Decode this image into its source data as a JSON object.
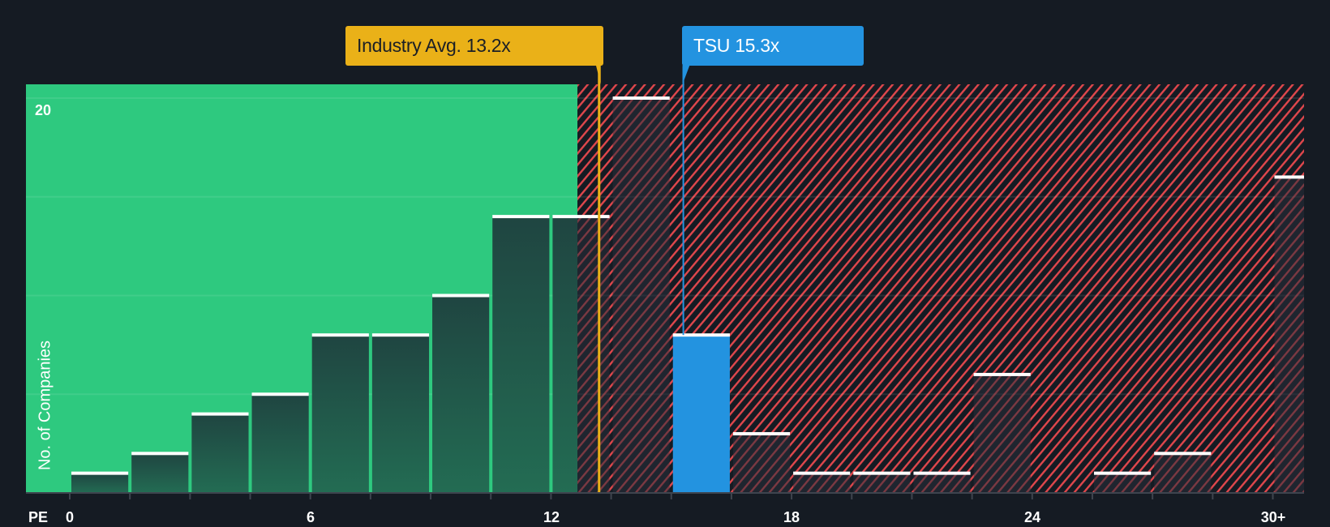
{
  "chart_data": {
    "type": "bar",
    "title": "",
    "xlabel": "PE",
    "ylabel": "No. of Companies",
    "x_tick_labels": [
      "0",
      "6",
      "12",
      "18",
      "24",
      "30+"
    ],
    "y_tick_labels": [
      "20"
    ],
    "ylim": [
      0,
      20.7
    ],
    "grid": true,
    "bin_width": 1.5,
    "categories": [
      "0-1.5",
      "1.5-3",
      "3-4.5",
      "4.5-6",
      "6-7.5",
      "7.5-9",
      "9-10.5",
      "10.5-12",
      "12-13.5",
      "13.5-15",
      "15-16.5",
      "16.5-18",
      "18-19.5",
      "19.5-21",
      "21-22.5",
      "22.5-24",
      "24-25.5",
      "25.5-27",
      "27-28.5",
      "28.5-30",
      "30+"
    ],
    "values": [
      1,
      2,
      4,
      5,
      8,
      8,
      10,
      14,
      14,
      20,
      8,
      3,
      1,
      1,
      1,
      6,
      0,
      1,
      2,
      0,
      16
    ],
    "highlight_bin_index": 10,
    "annotations": [
      {
        "label": "Industry Avg. 13.2x",
        "x": 13.2,
        "color": "#eab118"
      },
      {
        "label": "TSU 15.3x",
        "x": 15.3,
        "color": "#2393e0"
      }
    ],
    "zones": [
      {
        "name": "undervalued",
        "from": 0,
        "to": 12.7,
        "color": "#2ec97f"
      },
      {
        "name": "overvalued",
        "from": 12.7,
        "to": 31.5,
        "pattern": "red-hatch",
        "color": "#e0474c"
      }
    ]
  },
  "labels": {
    "industry_callout": "Industry Avg. 13.2x",
    "company_callout": "TSU 15.3x",
    "pe_axis": "PE",
    "y_axis_title": "No. of Companies",
    "y_tick_20": "20",
    "x_ticks": [
      "0",
      "6",
      "12",
      "18",
      "24",
      "30+"
    ]
  },
  "colors": {
    "background": "#151b23",
    "green_zone": "#2ec97f",
    "hatch_red": "#e0474c",
    "industry": "#eab118",
    "company": "#2393e0"
  }
}
